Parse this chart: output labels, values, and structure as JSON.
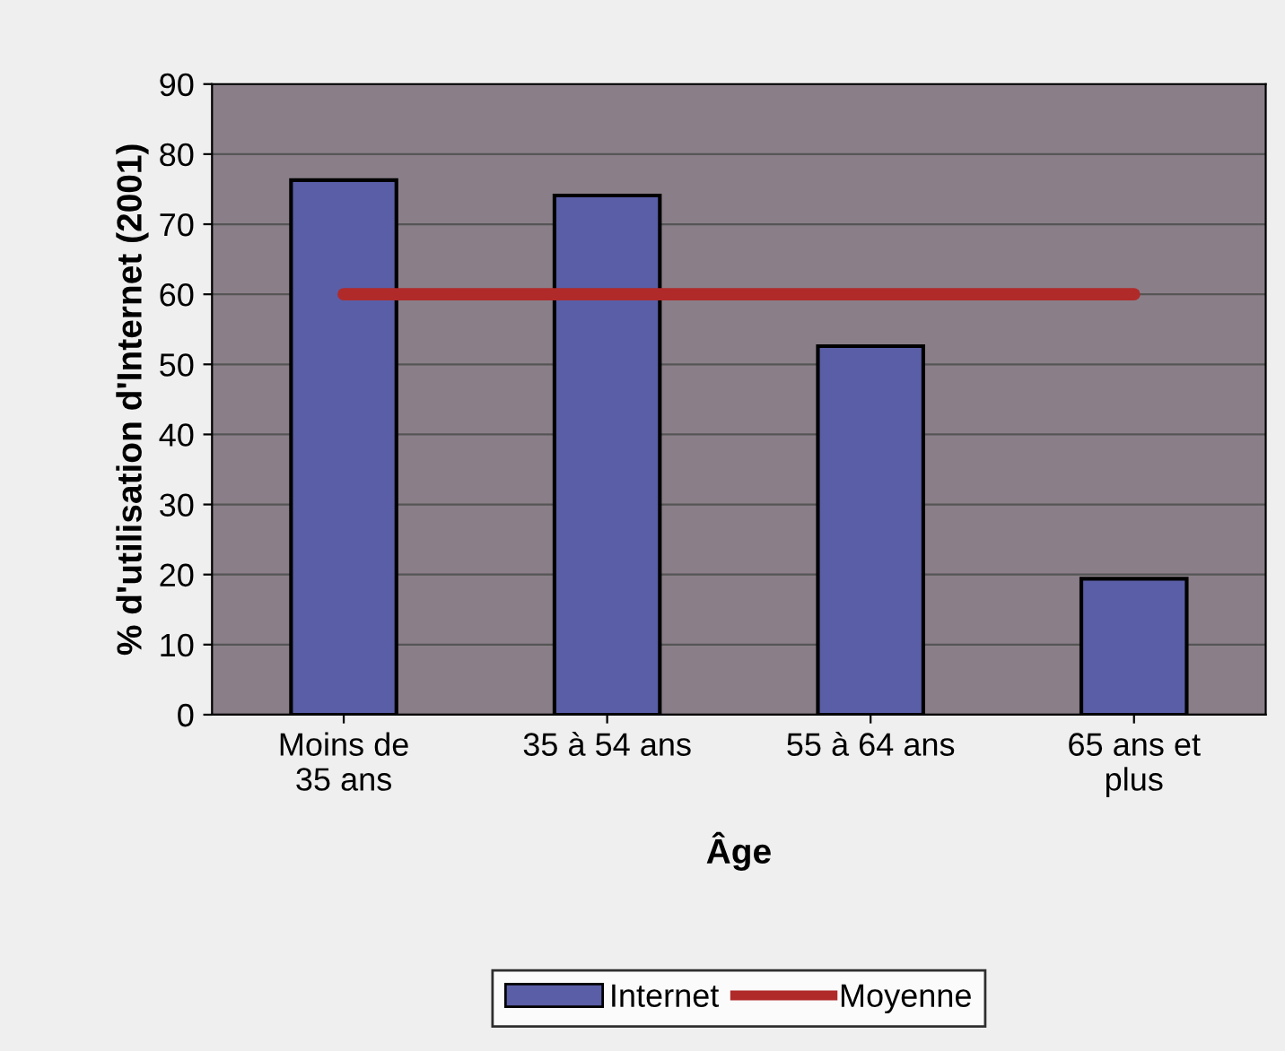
{
  "chart_data": {
    "type": "bar",
    "xlabel": "Âge",
    "ylabel": "% d'utilisation d'Internet (2001)",
    "categories": [
      "Moins de\n35 ans",
      "35 à 54 ans",
      "55 à 64 ans",
      "65 ans et\nplus"
    ],
    "series": [
      {
        "name": "Internet",
        "color": "#5a5ea6",
        "values": [
          76.3,
          74.1,
          52.6,
          19.4
        ]
      },
      {
        "name": "Moyenne",
        "type": "line",
        "color": "#b02a2a",
        "values": [
          60,
          60,
          60,
          60
        ]
      }
    ],
    "ylim": [
      0,
      90
    ],
    "yticks": [
      0,
      10,
      20,
      30,
      40,
      50,
      60,
      70,
      80,
      90
    ],
    "grid": "y",
    "legend": "bottom",
    "marker": "none",
    "line_style": "solid"
  }
}
